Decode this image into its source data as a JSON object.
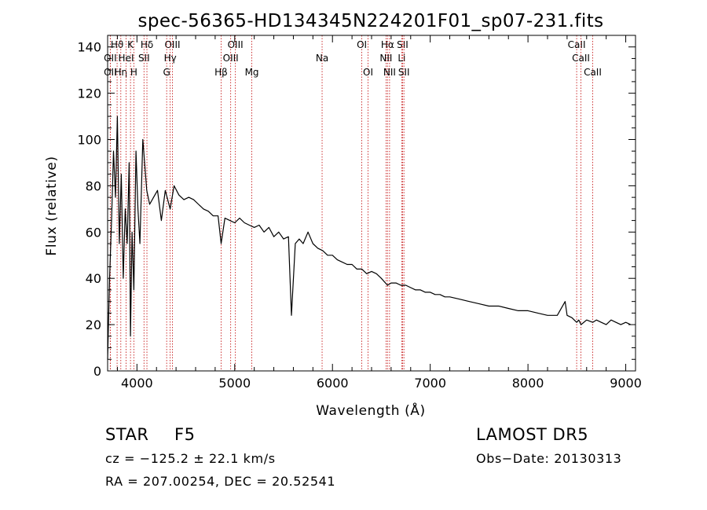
{
  "chart_data": {
    "type": "line",
    "title": "spec-56365-HD134345N224201F01_sp07-231.fits",
    "xlabel": "Wavelength (Å)",
    "ylabel": "Flux (relative)",
    "xlim": [
      3700,
      9100
    ],
    "ylim": [
      0,
      145
    ],
    "xticks": [
      4000,
      5000,
      6000,
      7000,
      8000,
      9000
    ],
    "yticks": [
      0,
      20,
      40,
      60,
      80,
      100,
      120,
      140
    ],
    "grid": false,
    "series": [
      {
        "x": [
          3700,
          3720,
          3740,
          3760,
          3780,
          3800,
          3820,
          3840,
          3860,
          3880,
          3900,
          3920,
          3934,
          3950,
          3968,
          3990,
          4010,
          4030,
          4060,
          4100,
          4130,
          4170,
          4210,
          4250,
          4290,
          4340,
          4380,
          4430,
          4480,
          4530,
          4580,
          4630,
          4680,
          4730,
          4780,
          4830,
          4861,
          4900,
          4950,
          5000,
          5050,
          5100,
          5150,
          5200,
          5250,
          5300,
          5350,
          5400,
          5450,
          5500,
          5550,
          5580,
          5620,
          5660,
          5700,
          5750,
          5800,
          5850,
          5900,
          5950,
          6000,
          6050,
          6100,
          6150,
          6200,
          6250,
          6300,
          6350,
          6400,
          6450,
          6500,
          6563,
          6600,
          6650,
          6700,
          6750,
          6800,
          6850,
          6900,
          6950,
          7000,
          7050,
          7100,
          7150,
          7200,
          7300,
          7400,
          7500,
          7600,
          7700,
          7800,
          7900,
          8000,
          8100,
          8200,
          8300,
          8380,
          8400,
          8450,
          8498,
          8520,
          8542,
          8600,
          8662,
          8700,
          8750,
          8800,
          8850,
          8900,
          8950,
          9000,
          9050
        ],
        "y": [
          5,
          40,
          65,
          95,
          75,
          110,
          55,
          85,
          40,
          70,
          55,
          90,
          15,
          60,
          35,
          95,
          70,
          55,
          100,
          78,
          72,
          75,
          78,
          65,
          78,
          70,
          80,
          76,
          74,
          75,
          74,
          72,
          70,
          69,
          67,
          67,
          55,
          66,
          65,
          64,
          66,
          64,
          63,
          62,
          63,
          60,
          62,
          58,
          60,
          57,
          58,
          24,
          55,
          57,
          55,
          60,
          55,
          53,
          52,
          50,
          50,
          48,
          47,
          46,
          46,
          44,
          44,
          42,
          43,
          42,
          40,
          37,
          38,
          38,
          37,
          37,
          36,
          35,
          35,
          34,
          34,
          33,
          33,
          32,
          32,
          31,
          30,
          29,
          28,
          28,
          27,
          26,
          26,
          25,
          24,
          24,
          30,
          24,
          23,
          21,
          22,
          20,
          22,
          21,
          22,
          21,
          20,
          22,
          21,
          20,
          21,
          20
        ]
      }
    ],
    "line_markers": [
      {
        "label": "Hϑ",
        "x": 3797,
        "row": 1
      },
      {
        "label": "OII",
        "x": 3727,
        "row": 2
      },
      {
        "label": "OII",
        "x": 3727,
        "row": 3
      },
      {
        "label": "Hη",
        "x": 3835,
        "row": 3
      },
      {
        "label": "K",
        "x": 3934,
        "row": 1
      },
      {
        "label": "HeI",
        "x": 3889,
        "row": 2
      },
      {
        "label": "H",
        "x": 3968,
        "row": 3
      },
      {
        "label": "Hδ",
        "x": 4102,
        "row": 1
      },
      {
        "label": "SII",
        "x": 4072,
        "row": 2
      },
      {
        "label": "OIII",
        "x": 4363,
        "row": 1
      },
      {
        "label": "Hγ",
        "x": 4340,
        "row": 2
      },
      {
        "label": "G",
        "x": 4304,
        "row": 3
      },
      {
        "label": "OIII",
        "x": 5007,
        "row": 1
      },
      {
        "label": "OIII",
        "x": 4959,
        "row": 2
      },
      {
        "label": "Hβ",
        "x": 4861,
        "row": 3
      },
      {
        "label": "Mg",
        "x": 5175,
        "row": 3
      },
      {
        "label": "Na",
        "x": 5894,
        "row": 2
      },
      {
        "label": "OI",
        "x": 6300,
        "row": 1
      },
      {
        "label": "OI",
        "x": 6364,
        "row": 3
      },
      {
        "label": "Hα",
        "x": 6563,
        "row": 1
      },
      {
        "label": "SII",
        "x": 6717,
        "row": 1
      },
      {
        "label": "NII",
        "x": 6548,
        "row": 2
      },
      {
        "label": "Li",
        "x": 6708,
        "row": 2
      },
      {
        "label": "NII",
        "x": 6584,
        "row": 3
      },
      {
        "label": "SII",
        "x": 6731,
        "row": 3
      },
      {
        "label": "CaII",
        "x": 8498,
        "row": 1
      },
      {
        "label": "CaII",
        "x": 8542,
        "row": 2
      },
      {
        "label": "CaII",
        "x": 8662,
        "row": 3
      }
    ]
  },
  "info": {
    "object_class": "STAR",
    "subclass": "F5",
    "survey": "LAMOST DR5",
    "cz": "cz = −125.2 ± 22.1 km/s",
    "obs_date": "Obs−Date: 20130313",
    "coords": "RA = 207.00254, DEC =  20.52541"
  }
}
